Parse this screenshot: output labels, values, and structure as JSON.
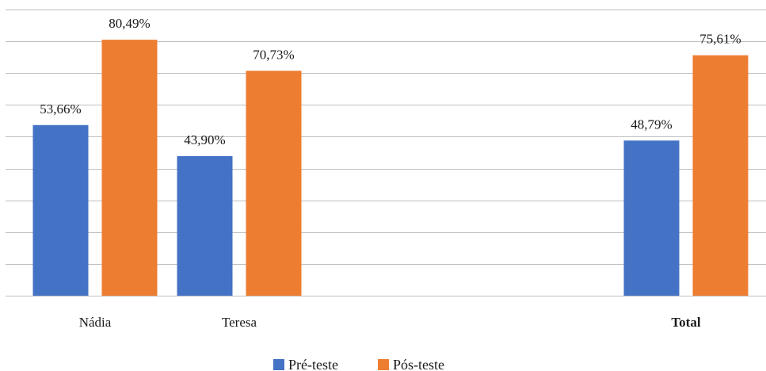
{
  "chart_data": {
    "type": "bar",
    "title": "",
    "xlabel": "",
    "ylabel": "",
    "categories": [
      "Nádia",
      "Teresa",
      "",
      "Total"
    ],
    "category_bold": [
      false,
      false,
      false,
      true
    ],
    "series": [
      {
        "name": "Pré-teste",
        "color": "#4472C4",
        "values": [
          53.66,
          43.9,
          null,
          48.79
        ],
        "labels": [
          "53,66%",
          "43,90%",
          "",
          "48,79%"
        ]
      },
      {
        "name": "Pós-teste",
        "color": "#ED7D31",
        "values": [
          80.49,
          70.73,
          null,
          75.61
        ],
        "labels": [
          "80,49%",
          "70,73%",
          "",
          "75,61%"
        ]
      }
    ],
    "ylim": [
      0,
      90
    ],
    "y_gridlines": [
      0,
      10,
      20,
      30,
      40,
      50,
      60,
      70,
      80,
      90
    ],
    "y_tick_labels_shown": false,
    "grid": true,
    "gridline_color": "#BFBFBF",
    "legend_position": "bottom"
  }
}
